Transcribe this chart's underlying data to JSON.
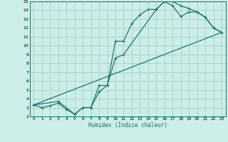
{
  "xlabel": "Humidex (Indice chaleur)",
  "bg_color": "#cceee8",
  "grid_color": "#aad4ce",
  "line_color": "#1a6e6a",
  "xlim": [
    -0.5,
    23.5
  ],
  "ylim": [
    2,
    15
  ],
  "xticks": [
    0,
    1,
    2,
    3,
    4,
    5,
    6,
    7,
    8,
    9,
    10,
    11,
    12,
    13,
    14,
    15,
    16,
    17,
    18,
    19,
    20,
    21,
    22,
    23
  ],
  "yticks": [
    2,
    3,
    4,
    5,
    6,
    7,
    8,
    9,
    10,
    11,
    12,
    13,
    14,
    15
  ],
  "line1_x": [
    0,
    1,
    2,
    3,
    4,
    5,
    6,
    7,
    8,
    9,
    10,
    11,
    12,
    13,
    14,
    15,
    16,
    17,
    18,
    19,
    20,
    21,
    22,
    23
  ],
  "line1_y": [
    3.3,
    3.0,
    3.2,
    3.5,
    2.8,
    2.25,
    3.0,
    3.0,
    4.8,
    5.5,
    10.5,
    10.5,
    12.5,
    13.5,
    14.1,
    14.1,
    15.0,
    15.0,
    14.5,
    14.2,
    13.8,
    13.2,
    12.0,
    11.5
  ],
  "line2_x": [
    0,
    3,
    5,
    6,
    7,
    8,
    9,
    10,
    11,
    15,
    16,
    17,
    18,
    19,
    20,
    21,
    22,
    23
  ],
  "line2_y": [
    3.3,
    3.7,
    2.25,
    3.0,
    3.0,
    5.5,
    5.5,
    8.6,
    9.0,
    14.1,
    15.0,
    14.5,
    13.3,
    13.8,
    13.8,
    13.2,
    12.0,
    11.5
  ],
  "line3_x": [
    0,
    23
  ],
  "line3_y": [
    3.3,
    11.5
  ]
}
